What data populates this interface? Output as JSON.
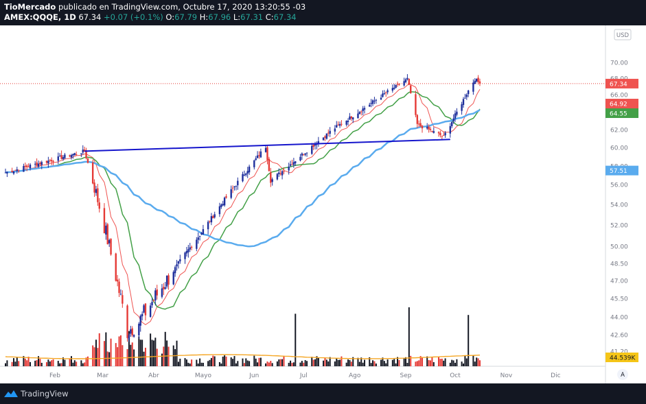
{
  "header": {
    "author": "TioMercado",
    "published": "publicado en TradingView.com, Octubre 17, 2020 13:20:55 -03",
    "symbol": "AMEX:QQQE, 1D",
    "last": "67.34",
    "change": "+0.07 (+0.1%)",
    "o_label": "O:",
    "o_val": "67.79",
    "h_label": "H:",
    "h_val": "67.96",
    "l_label": "L:",
    "l_val": "67.31",
    "c_label": "C:",
    "c_val": "67.34"
  },
  "currency_badge": "USD",
  "scale_button": "A",
  "footer": {
    "brand": "TradingView"
  },
  "colors": {
    "up": "#1e2f9c",
    "down": "#e53935",
    "sma_fast": "#ef5350",
    "sma_mid": "#43a047",
    "sma_slow": "#5aabee",
    "trendline": "#1515cc",
    "vol_avg": "#f5a623"
  },
  "chart_data": {
    "type": "candlestick",
    "y_axis": {
      "ticks": [
        "70.00",
        "68.00",
        "66.00",
        "64.00",
        "62.00",
        "60.00",
        "58.00",
        "56.00",
        "54.00",
        "52.00",
        "50.00",
        "48.50",
        "47.00",
        "45.50",
        "44.00",
        "42.60",
        "41.20"
      ],
      "ylim": [
        40.5,
        71.5
      ]
    },
    "x_axis": {
      "labels": [
        "Feb",
        "Mar",
        "Abr",
        "Mayo",
        "Jun",
        "Jul",
        "Ago",
        "Sep",
        "Oct",
        "Nov",
        "Dic"
      ]
    },
    "price_labels": [
      {
        "value": "67.34",
        "color": "#ef5350"
      },
      {
        "value": "64.92",
        "color": "#ef5350"
      },
      {
        "value": "64.55",
        "color": "#43a047"
      },
      {
        "value": "57.51",
        "color": "#5aabee"
      },
      {
        "value": "44.539K",
        "color": "#f5c518"
      }
    ],
    "key_points": [
      {
        "date": "2020-01-02",
        "close": 57.3
      },
      {
        "date": "2020-02-19",
        "close": 59.6
      },
      {
        "date": "2020-03-16",
        "close": 42.9
      },
      {
        "date": "2020-03-23",
        "close": 43.6
      },
      {
        "date": "2020-04-30",
        "close": 51.3
      },
      {
        "date": "2020-06-08",
        "close": 60.1
      },
      {
        "date": "2020-06-11",
        "close": 56.4
      },
      {
        "date": "2020-07-20",
        "close": 62.2
      },
      {
        "date": "2020-09-02",
        "close": 67.9
      },
      {
        "date": "2020-09-08",
        "close": 62.6
      },
      {
        "date": "2020-09-24",
        "close": 61.2
      },
      {
        "date": "2020-10-13",
        "close": 67.9
      },
      {
        "date": "2020-10-16",
        "close": 67.34
      }
    ],
    "trendline": {
      "from": {
        "date": "2020-02-19",
        "value": 59.6
      },
      "to": {
        "date": "2020-09-28",
        "value": 60.9
      }
    },
    "moving_averages": [
      {
        "key": "sma_fast",
        "last": 64.92
      },
      {
        "key": "sma_mid",
        "last": 64.55
      },
      {
        "key": "sma_slow",
        "last": 57.51
      }
    ],
    "volume": {
      "last_avg": "44.539K",
      "spikes": [
        {
          "date": "2020-06-26"
        },
        {
          "date": "2020-09-03"
        },
        {
          "date": "2020-10-09"
        }
      ]
    },
    "last_price": 67.34
  }
}
